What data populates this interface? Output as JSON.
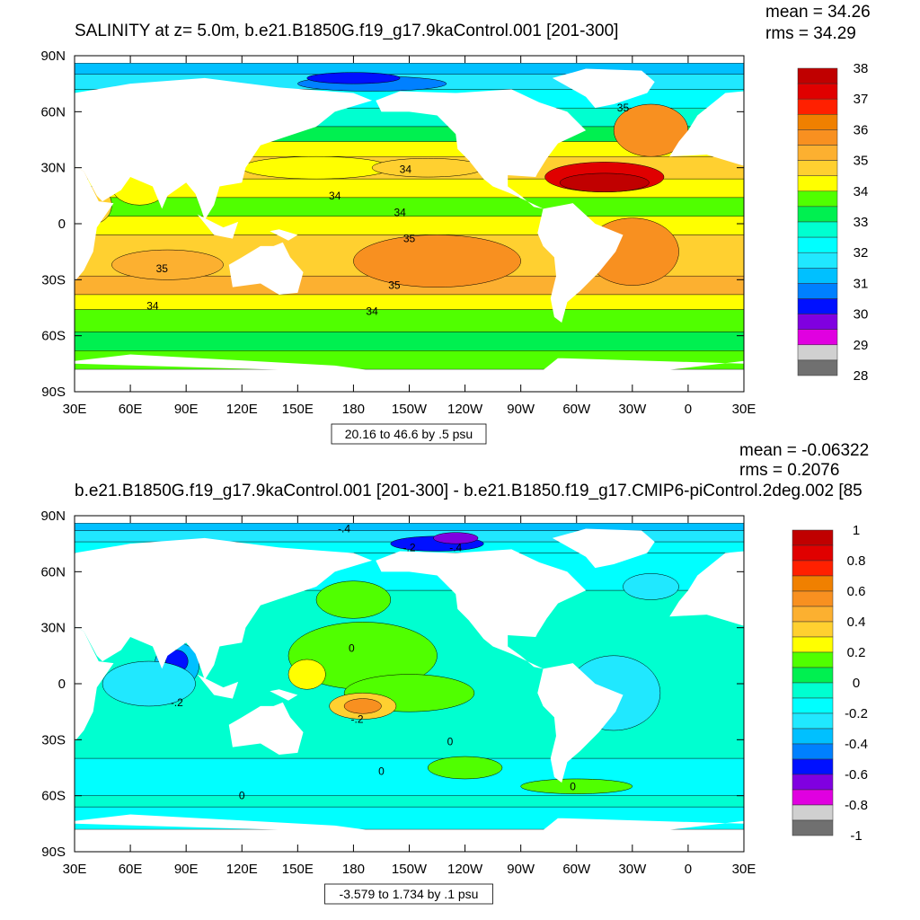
{
  "chart_data": [
    {
      "type": "heatmap",
      "title": "SALINITY at z=   5.0m, b.e21.B1850G.f19_g17.9kaControl.001 [201-300]",
      "stats": {
        "mean": "mean = 34.26",
        "rms": "rms = 34.29"
      },
      "info": "20.16 to 46.6 by .5 psu",
      "x_ticks": [
        "30E",
        "60E",
        "90E",
        "120E",
        "150E",
        "180",
        "150W",
        "120W",
        "90W",
        "60W",
        "30W",
        "0",
        "30E"
      ],
      "y_ticks": [
        "90N",
        "60N",
        "30N",
        "0",
        "30S",
        "60S",
        "90S"
      ],
      "colorbar_labels": [
        "38",
        "37",
        "36",
        "35",
        "34",
        "33",
        "32",
        "31",
        "30",
        "29",
        "28"
      ],
      "colorbar_range": [
        28,
        38
      ],
      "contour_labels": [
        {
          "text": "35",
          "lon": -35,
          "lat": 62
        },
        {
          "text": "34",
          "lon": -152,
          "lat": 29
        },
        {
          "text": "34",
          "lon": 170,
          "lat": 15
        },
        {
          "text": "34",
          "lon": -155,
          "lat": 6
        },
        {
          "text": "35",
          "lon": -150,
          "lat": -8
        },
        {
          "text": "35",
          "lon": 77,
          "lat": -24
        },
        {
          "text": "35",
          "lon": -158,
          "lat": -33
        },
        {
          "text": "34",
          "lon": 72,
          "lat": -44
        },
        {
          "text": "34",
          "lon": -170,
          "lat": -47
        }
      ]
    },
    {
      "type": "heatmap",
      "title": "b.e21.B1850G.f19_g17.9kaControl.001 [201-300] - b.e21.B1850.f19_g17.CMIP6-piControl.2deg.002 [85",
      "stats": {
        "mean": "mean = -0.06322",
        "rms": "rms = 0.2076"
      },
      "info": "-3.579 to 1.734 by .1 psu",
      "x_ticks": [
        "30E",
        "60E",
        "90E",
        "120E",
        "150E",
        "180",
        "150W",
        "120W",
        "90W",
        "60W",
        "30W",
        "0",
        "30E"
      ],
      "y_ticks": [
        "90N",
        "60N",
        "30N",
        "0",
        "30S",
        "60S",
        "90S"
      ],
      "colorbar_labels": [
        "1",
        "0.8",
        "0.6",
        "0.4",
        "0.2",
        "0",
        "-0.2",
        "-0.4",
        "-0.6",
        "-0.8",
        "-1"
      ],
      "colorbar_range": [
        -1,
        1
      ],
      "contour_labels": [
        {
          "text": "-.4",
          "lon": 175,
          "lat": 83
        },
        {
          "text": "-.2",
          "lon": -150,
          "lat": 73
        },
        {
          "text": "-.4",
          "lon": -125,
          "lat": 73
        },
        {
          "text": "0",
          "lon": 179,
          "lat": 19
        },
        {
          "text": "-.2",
          "lon": 85,
          "lat": -10
        },
        {
          "text": "-.2",
          "lon": -178,
          "lat": -19
        },
        {
          "text": "0",
          "lon": -128,
          "lat": -31
        },
        {
          "text": "0",
          "lon": -165,
          "lat": -47
        },
        {
          "text": "0",
          "lon": -62,
          "lat": -55
        },
        {
          "text": "0",
          "lon": 120,
          "lat": -60
        }
      ]
    }
  ],
  "colors": [
    "#c00000",
    "#e00000",
    "#ff2000",
    "#f08000",
    "#f89020",
    "#fcb030",
    "#ffd030",
    "#ffff00",
    "#50ff00",
    "#00f050",
    "#00ffd0",
    "#00ffff",
    "#20e8ff",
    "#00c0ff",
    "#0080ff",
    "#0010ff",
    "#8000e0",
    "#e000e0",
    "#d0d0d0",
    "#707070"
  ]
}
